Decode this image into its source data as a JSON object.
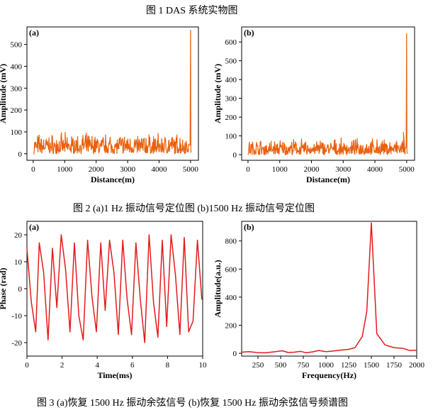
{
  "captions": {
    "fig1": "图 1 DAS 系统实物图",
    "fig2": "图 2 (a)1 Hz 振动信号定位图  (b)1500 Hz 振动信号定位图",
    "fig3": "图 3 (a)恢复 1500 Hz 振动余弦信号  (b)恢复 1500 Hz 振动余弦信号频谱图"
  },
  "colors": {
    "orange": "#e8600c",
    "red": "#e31a1c",
    "axis": "#000000"
  },
  "chart_data": [
    {
      "id": "fig2a",
      "panel_label": "(a)",
      "type": "line",
      "xlabel": "Distance(m)",
      "ylabel": "Amplitude (mV)",
      "xlim": [
        -200,
        5250
      ],
      "ylim": [
        -30,
        580
      ],
      "xticks": [
        0,
        1000,
        2000,
        3000,
        4000,
        5000
      ],
      "yticks": [
        0,
        100,
        200,
        300,
        400,
        500
      ],
      "noise_range_mV": [
        0,
        100
      ],
      "peak": {
        "x": 5000,
        "y": 565
      }
    },
    {
      "id": "fig2b",
      "panel_label": "(b)",
      "type": "line",
      "xlabel": "Distance(m)",
      "ylabel": "Amplitude (mV)",
      "xlim": [
        -200,
        5250
      ],
      "ylim": [
        -30,
        680
      ],
      "xticks": [
        0,
        1000,
        2000,
        3000,
        4000,
        5000
      ],
      "yticks": [
        0,
        100,
        200,
        300,
        400,
        500,
        600
      ],
      "noise_range_mV": [
        0,
        90
      ],
      "secondary_peak": {
        "x": 4900,
        "y": 120
      },
      "peak": {
        "x": 5000,
        "y": 645
      }
    },
    {
      "id": "fig3a",
      "panel_label": "(a)",
      "type": "line",
      "xlabel": "Time(ms)",
      "ylabel": "Phase (rad)",
      "xlim": [
        0,
        10
      ],
      "ylim": [
        -25,
        25
      ],
      "xticks": [
        0,
        2,
        4,
        6,
        8,
        10
      ],
      "yticks": [
        -20,
        -10,
        0,
        10,
        20
      ],
      "x": [
        0,
        0.25,
        0.5,
        0.7,
        0.95,
        1.2,
        1.45,
        1.7,
        1.95,
        2.2,
        2.45,
        2.7,
        2.95,
        3.2,
        3.45,
        3.7,
        3.95,
        4.2,
        4.45,
        4.7,
        4.95,
        5.2,
        5.45,
        5.7,
        5.95,
        6.2,
        6.45,
        6.7,
        6.95,
        7.2,
        7.45,
        7.7,
        7.95,
        8.2,
        8.45,
        8.7,
        8.95,
        9.2,
        9.45,
        9.7,
        9.95
      ],
      "y": [
        15,
        -5,
        -16,
        17,
        6,
        -19,
        15,
        -7,
        20,
        7,
        -16,
        17,
        -10,
        -19,
        18,
        -3,
        -16,
        17,
        -8,
        18,
        6,
        -17,
        18,
        -4,
        -17,
        17,
        -4,
        -20,
        20,
        -5,
        -18,
        18,
        -14,
        20,
        5,
        -17,
        19,
        -16,
        -12,
        18,
        -4
      ]
    },
    {
      "id": "fig3b",
      "panel_label": "(b)",
      "type": "line",
      "xlabel": "Frequency(Hz)",
      "ylabel": "Amplitude(a.u.)",
      "xlim": [
        70,
        2000
      ],
      "ylim": [
        -20,
        940
      ],
      "xticks": [
        250,
        500,
        750,
        1000,
        1250,
        1500,
        1750,
        2000
      ],
      "yticks": [
        0,
        200,
        400,
        600,
        800
      ],
      "x": [
        70,
        150,
        250,
        330,
        420,
        520,
        580,
        650,
        720,
        780,
        850,
        920,
        1000,
        1080,
        1150,
        1250,
        1320,
        1400,
        1450,
        1500,
        1560,
        1650,
        1750,
        1850,
        1920,
        2000
      ],
      "y": [
        8,
        12,
        5,
        3,
        10,
        18,
        6,
        8,
        14,
        4,
        10,
        20,
        12,
        16,
        22,
        28,
        40,
        120,
        300,
        930,
        140,
        60,
        40,
        35,
        20,
        22
      ]
    }
  ]
}
